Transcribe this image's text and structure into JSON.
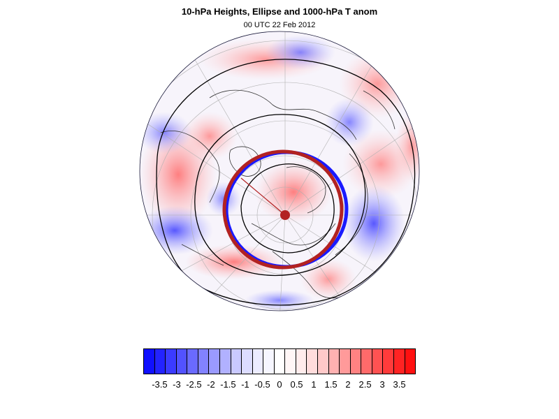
{
  "title": "10-hPa Heights, Ellipse and 1000-hPa T anom",
  "subtitle": "00 UTC 22 Feb 2012",
  "map": {
    "projection": "polar-stereographic-north",
    "anomaly_positive_color": "#ff0000",
    "anomaly_negative_color": "#0000ff",
    "ellipse_color": "#b22222",
    "ellipse_shadow_color": "#1a1aff",
    "contour_color": "#000000",
    "grid_color": "#b0b0b0"
  },
  "colorbar": {
    "labels": [
      "-3.5",
      "-3",
      "-2.5",
      "-2",
      "-1.5",
      "-1",
      "-0.5",
      "0",
      "0.5",
      "1",
      "1.5",
      "2",
      "2.5",
      "3",
      "3.5"
    ],
    "colors": [
      "#1010ff",
      "#2323ff",
      "#3b3bff",
      "#5252ff",
      "#6a6aff",
      "#8282ff",
      "#9a9aff",
      "#b1b1ff",
      "#c9c9ff",
      "#dcdcff",
      "#ececff",
      "#f6f6ff",
      "#ffffff",
      "#fff6f6",
      "#ffecec",
      "#ffdcdc",
      "#ffc9c9",
      "#ffb1b1",
      "#ff9a9a",
      "#ff8282",
      "#ff6a6a",
      "#ff5252",
      "#ff3b3b",
      "#ff2323",
      "#ff1010"
    ]
  }
}
